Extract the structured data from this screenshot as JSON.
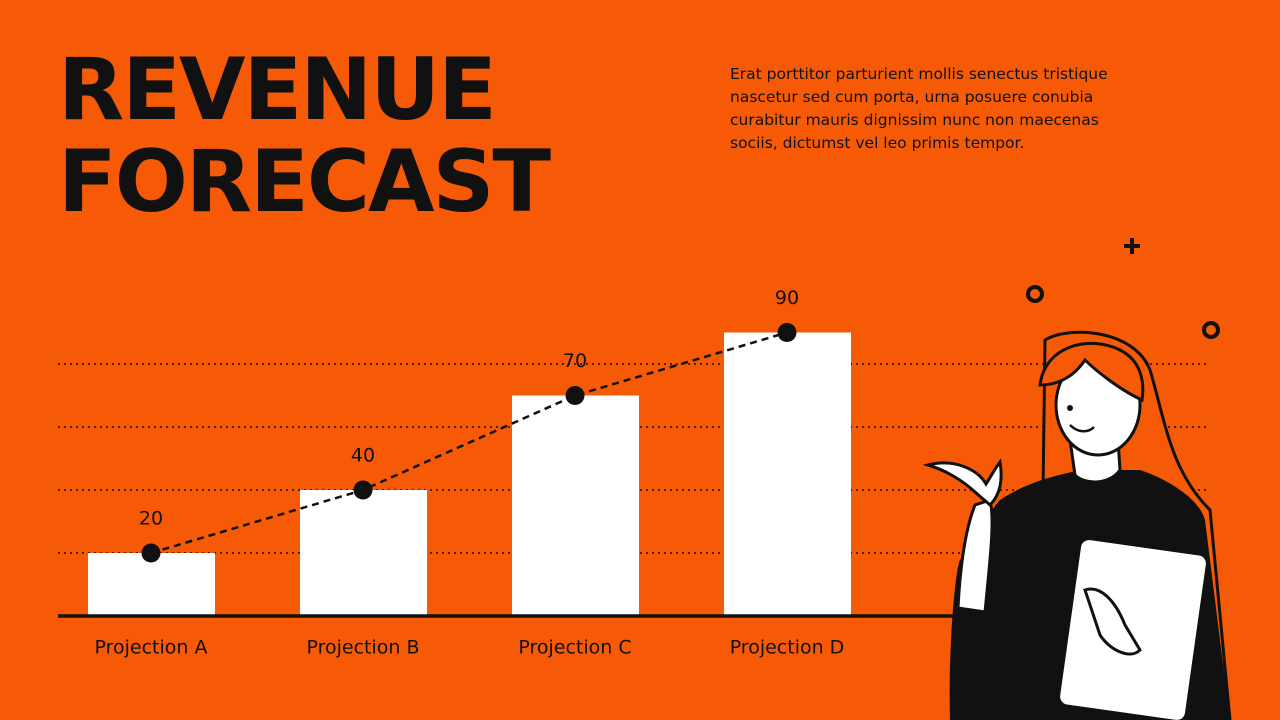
{
  "chart_data": {
    "type": "bar",
    "title": "REVENUE FORECAST",
    "description": "Erat porttitor parturient mollis senectus tristique nascetur sed cum porta, urna posuere conubia curabitur mauris dignissim nunc non maecenas sociis, dictumst vel leo primis tempor.",
    "categories": [
      "Projection A",
      "Projection B",
      "Projection C",
      "Projection D"
    ],
    "values": [
      20,
      40,
      70,
      90
    ],
    "color": "#ffffff",
    "line_color": "#111111",
    "show_line": true,
    "ylim": [
      0,
      100
    ],
    "yticks": [
      20,
      40,
      60,
      80
    ],
    "grid": true,
    "tick_labels": false
  }
}
